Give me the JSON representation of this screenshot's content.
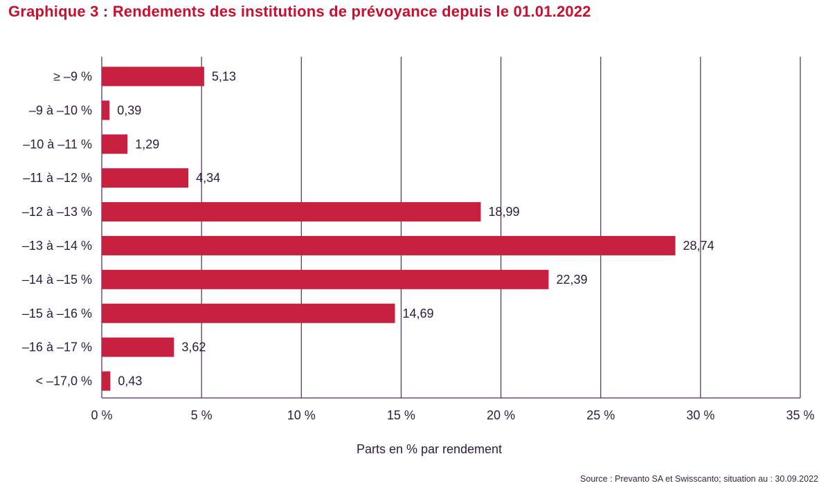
{
  "title": "Graphique 3 : Rendements des institutions de prévoyance depuis le 01.01.2022",
  "source": "Source : Prevanto SA et Swisscanto; situation au : 30.09.2022",
  "colors": {
    "bar": "#c8203f",
    "grid": "#4b2a5a",
    "text": "#2f1a3d",
    "title": "#c8102e"
  },
  "chart_data": {
    "type": "bar",
    "orientation": "horizontal",
    "categories": [
      "≥ –9 %",
      "–9 à –10 %",
      "–10 à –11 %",
      "–11 à –12 %",
      "–12 à –13 %",
      "–13 à –14 %",
      "–14 à –15 %",
      "–15 à –16 %",
      "–16 à –17 %",
      "< –17,0 %"
    ],
    "values": [
      5.13,
      0.39,
      1.29,
      4.34,
      18.99,
      28.74,
      22.39,
      14.69,
      3.62,
      0.43
    ],
    "value_labels": [
      "5,13",
      "0,39",
      "1,29",
      "4,34",
      "18,99",
      "28,74",
      "22,39",
      "14,69",
      "3,62",
      "0,43"
    ],
    "xlabel": "Parts en % par rendement",
    "ylabel": "",
    "xlim": [
      0,
      35
    ],
    "xticks": [
      0,
      5,
      10,
      15,
      20,
      25,
      30,
      35
    ],
    "xtick_labels": [
      "0 %",
      "5 %",
      "10 %",
      "15 %",
      "20 %",
      "25 %",
      "30 %",
      "35 %"
    ],
    "grid": true,
    "legend": "none"
  }
}
